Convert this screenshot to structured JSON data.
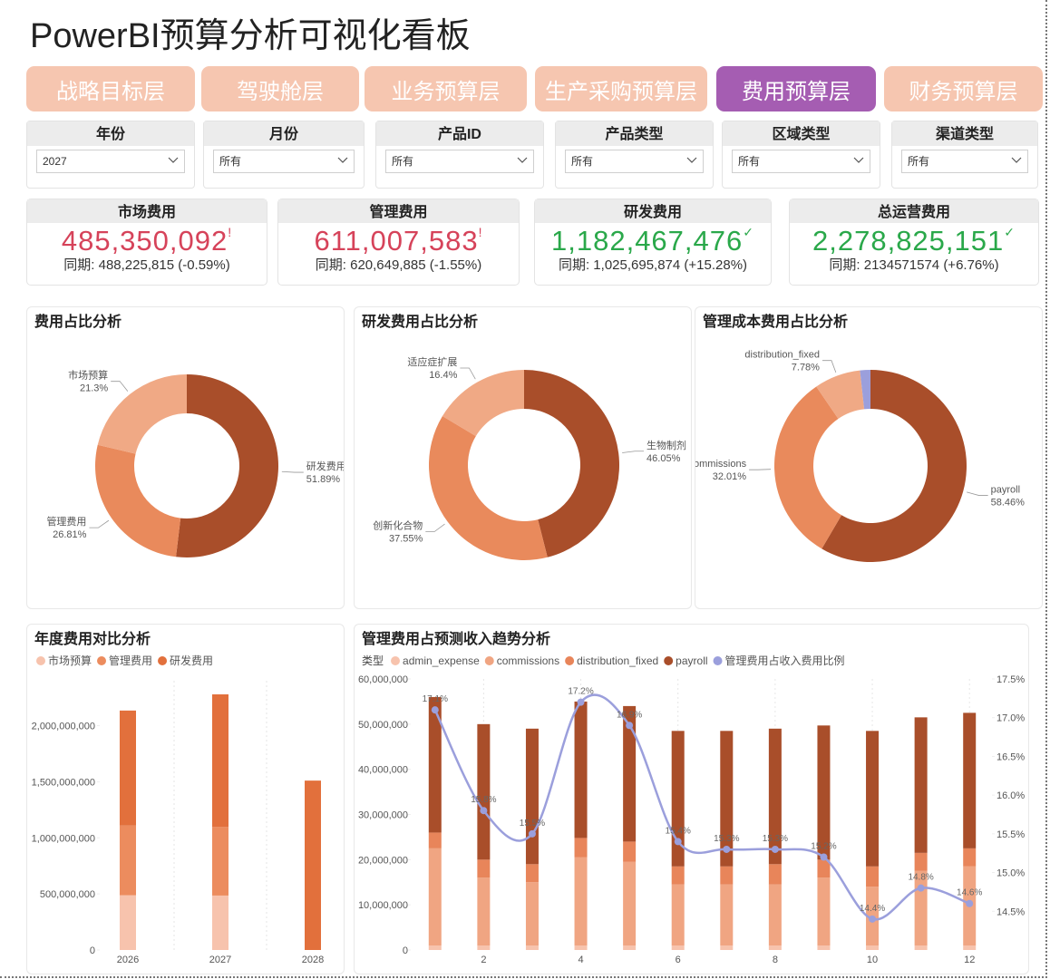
{
  "title": "PowerBI预算分析可视化看板",
  "tabs": [
    "战略目标层",
    "驾驶舱层",
    "业务预算层",
    "生产采购预算层",
    "费用预算层",
    "财务预算层"
  ],
  "active_tab": 4,
  "filters": [
    {
      "label": "年份",
      "value": "2027"
    },
    {
      "label": "月份",
      "value": "所有"
    },
    {
      "label": "产品ID",
      "value": "所有"
    },
    {
      "label": "产品类型",
      "value": "所有"
    },
    {
      "label": "区域类型",
      "value": "所有"
    },
    {
      "label": "渠道类型",
      "value": "所有"
    }
  ],
  "kpis": [
    {
      "label": "市场费用",
      "value": "485,350,092",
      "status": "!",
      "comparison": "同期: 488,225,815 (-0.59%)",
      "color": "#d6435a"
    },
    {
      "label": "管理费用",
      "value": "611,007,583",
      "status": "!",
      "comparison": "同期: 620,649,885 (-1.55%)",
      "color": "#d6435a"
    },
    {
      "label": "研发费用",
      "value": "1,182,467,476",
      "status": "✓",
      "comparison": "同期: 1,025,695,874 (+15.28%)",
      "color": "#2aa84a"
    },
    {
      "label": "总运营费用",
      "value": "2,278,825,151",
      "status": "✓",
      "comparison": "同期: 2134571574 (+6.76%)",
      "color": "#2aa84a"
    }
  ],
  "chart_data": [
    {
      "type": "donut",
      "title": "费用占比分析",
      "categories": [
        "研发费用",
        "管理费用",
        "市场预算"
      ],
      "values": [
        51.89,
        26.81,
        21.3
      ],
      "value_labels": [
        "51.89%",
        "26.81%",
        "21.3%"
      ],
      "colors": [
        "#a94e2a",
        "#e98a5c",
        "#f0a985"
      ]
    },
    {
      "type": "donut",
      "title": "研发费用占比分析",
      "categories": [
        "生物制剂",
        "创新化合物",
        "适应症扩展"
      ],
      "values": [
        46.05,
        37.55,
        16.4
      ],
      "value_labels": [
        "46.05%",
        "37.55%",
        "16.4%"
      ],
      "colors": [
        "#a94e2a",
        "#e98a5c",
        "#f0a985"
      ]
    },
    {
      "type": "donut",
      "title": "管理成本费用占比分析",
      "categories": [
        "payroll",
        "commissions",
        "distribution_fixed",
        null
      ],
      "values": [
        58.46,
        32.01,
        7.78,
        1.75
      ],
      "value_labels": [
        "58.46%",
        "32.01%",
        "7.78%",
        null
      ],
      "colors": [
        "#a94e2a",
        "#e98a5c",
        "#f0a985",
        "#9b9fdc"
      ]
    },
    {
      "type": "stacked_bar",
      "title": "年度费用对比分析",
      "categories": [
        "2026",
        "2027",
        "2028"
      ],
      "series": [
        {
          "name": "市场预算",
          "color": "#f7c3ad",
          "values": [
            488225815,
            485350092,
            null
          ]
        },
        {
          "name": "管理费用",
          "color": "#ec8c5e",
          "values": [
            620649885,
            611007583,
            null
          ]
        },
        {
          "name": "研发费用",
          "color": "#e2703c",
          "values": [
            1025695874,
            1182467476,
            1510000000
          ]
        }
      ],
      "ylim": [
        0,
        2400000000
      ],
      "yticks": [
        0,
        {
          "value": 500000000,
          "label": "500,000,000"
        },
        {
          "value": 1000000000,
          "label": "1,000,000,000"
        },
        {
          "value": 1500000000,
          "label": "1,500,000,000"
        },
        {
          "value": 2000000000,
          "label": "2,000,000,000"
        }
      ]
    },
    {
      "type": "combo",
      "title": "管理费用占预测收入趋势分析",
      "legend_title": "类型",
      "x": [
        1,
        2,
        3,
        4,
        5,
        6,
        7,
        8,
        9,
        10,
        11,
        12
      ],
      "series": [
        {
          "name": "admin_expense",
          "color": "#f7c3ad",
          "values": [
            1000000,
            1000000,
            1000000,
            1000000,
            1000000,
            1000000,
            1000000,
            1000000,
            1000000,
            1000000,
            1000000,
            1000000
          ]
        },
        {
          "name": "commissions",
          "color": "#f0a582",
          "values": [
            21500000,
            15000000,
            14000000,
            19500000,
            18500000,
            13500000,
            13500000,
            13500000,
            15000000,
            13000000,
            16500000,
            17500000
          ]
        },
        {
          "name": "distribution_fixed",
          "color": "#e8855a",
          "values": [
            3500000,
            4000000,
            4000000,
            4300000,
            4500000,
            4000000,
            4000000,
            4500000,
            4000000,
            4500000,
            4000000,
            4000000
          ]
        },
        {
          "name": "payroll",
          "color": "#a94e2a",
          "values": [
            30000000,
            30000000,
            30000000,
            30200000,
            30000000,
            30000000,
            30000000,
            30000000,
            29700000,
            30000000,
            30000000,
            30000000
          ]
        },
        {
          "name": "管理费用占收入费用比例",
          "color": "#9b9fdc",
          "axis": "y2",
          "values": [
            17.1,
            15.8,
            15.5,
            17.2,
            16.9,
            15.4,
            15.3,
            15.3,
            15.2,
            14.4,
            14.8,
            14.6
          ],
          "value_labels": [
            "17.1%",
            "15.8%",
            "15.5%",
            "17.2%",
            "16.9%",
            "15.4%",
            "15.3%",
            "15.3%",
            "15.2%",
            "14.4%",
            "14.8%",
            "14.6%"
          ]
        }
      ],
      "xlim": [
        0.5,
        12.5
      ],
      "xticks": [
        2,
        4,
        6,
        8,
        10,
        12
      ],
      "ylim": [
        0,
        60000000
      ],
      "yticks": [
        0,
        {
          "value": 10000000,
          "label": "10,000,000"
        },
        {
          "value": 20000000,
          "label": "20,000,000"
        },
        {
          "value": 30000000,
          "label": "30,000,000"
        },
        {
          "value": 40000000,
          "label": "40,000,000"
        },
        {
          "value": 50000000,
          "label": "50,000,000"
        },
        {
          "value": 60000000,
          "label": "60,000,000"
        }
      ],
      "y2lim": [
        14.0,
        17.5
      ],
      "y2ticks": [
        {
          "value": 14.5,
          "label": "14.5%"
        },
        {
          "value": 15.0,
          "label": "15.0%"
        },
        {
          "value": 15.5,
          "label": "15.5%"
        },
        {
          "value": 16.0,
          "label": "16.0%"
        },
        {
          "value": 16.5,
          "label": "16.5%"
        },
        {
          "value": 17.0,
          "label": "17.0%"
        },
        {
          "value": 17.5,
          "label": "17.5%"
        }
      ]
    }
  ]
}
